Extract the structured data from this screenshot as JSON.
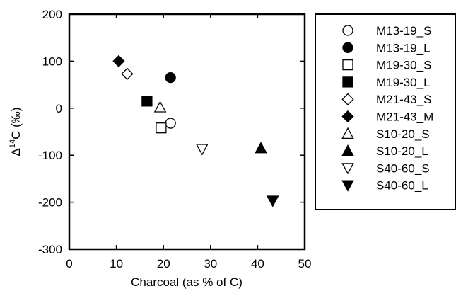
{
  "chart_data": {
    "type": "scatter",
    "xlabel": "Charcoal (as % of C)",
    "ylabel_parts": {
      "prefix": "Δ",
      "superscript": "14",
      "rest": "C (‰)"
    },
    "xlim": [
      0,
      50
    ],
    "ylim": [
      -300,
      200
    ],
    "xticks": [
      0,
      10,
      20,
      30,
      40,
      50
    ],
    "yticks": [
      -300,
      -200,
      -100,
      0,
      100,
      200
    ],
    "grid": false,
    "legend_position": "right, outside plot",
    "series": [
      {
        "name": "M13-19_S",
        "marker": "circle",
        "filled": false,
        "points": [
          [
            21.5,
            -32
          ]
        ]
      },
      {
        "name": "M13-19_L",
        "marker": "circle",
        "filled": true,
        "points": [
          [
            21.5,
            65
          ]
        ]
      },
      {
        "name": "M19-30_S",
        "marker": "square",
        "filled": false,
        "points": [
          [
            19.5,
            -42
          ]
        ]
      },
      {
        "name": "M19-30_L",
        "marker": "square",
        "filled": true,
        "points": [
          [
            16.5,
            15
          ]
        ]
      },
      {
        "name": "M21-43_S",
        "marker": "diamond",
        "filled": false,
        "points": [
          [
            12.3,
            73
          ]
        ]
      },
      {
        "name": "M21-43_M",
        "marker": "diamond",
        "filled": true,
        "points": [
          [
            10.5,
            100
          ]
        ]
      },
      {
        "name": "S10-20_S",
        "marker": "triangle-up",
        "filled": false,
        "points": [
          [
            19.3,
            2
          ]
        ]
      },
      {
        "name": "S10-20_L",
        "marker": "triangle-up",
        "filled": true,
        "points": [
          [
            40.7,
            -85
          ]
        ]
      },
      {
        "name": "S40-60_S",
        "marker": "triangle-down",
        "filled": false,
        "points": [
          [
            28.2,
            -87
          ]
        ]
      },
      {
        "name": "S40-60_L",
        "marker": "triangle-down",
        "filled": true,
        "points": [
          [
            43.2,
            -197
          ]
        ]
      }
    ]
  }
}
